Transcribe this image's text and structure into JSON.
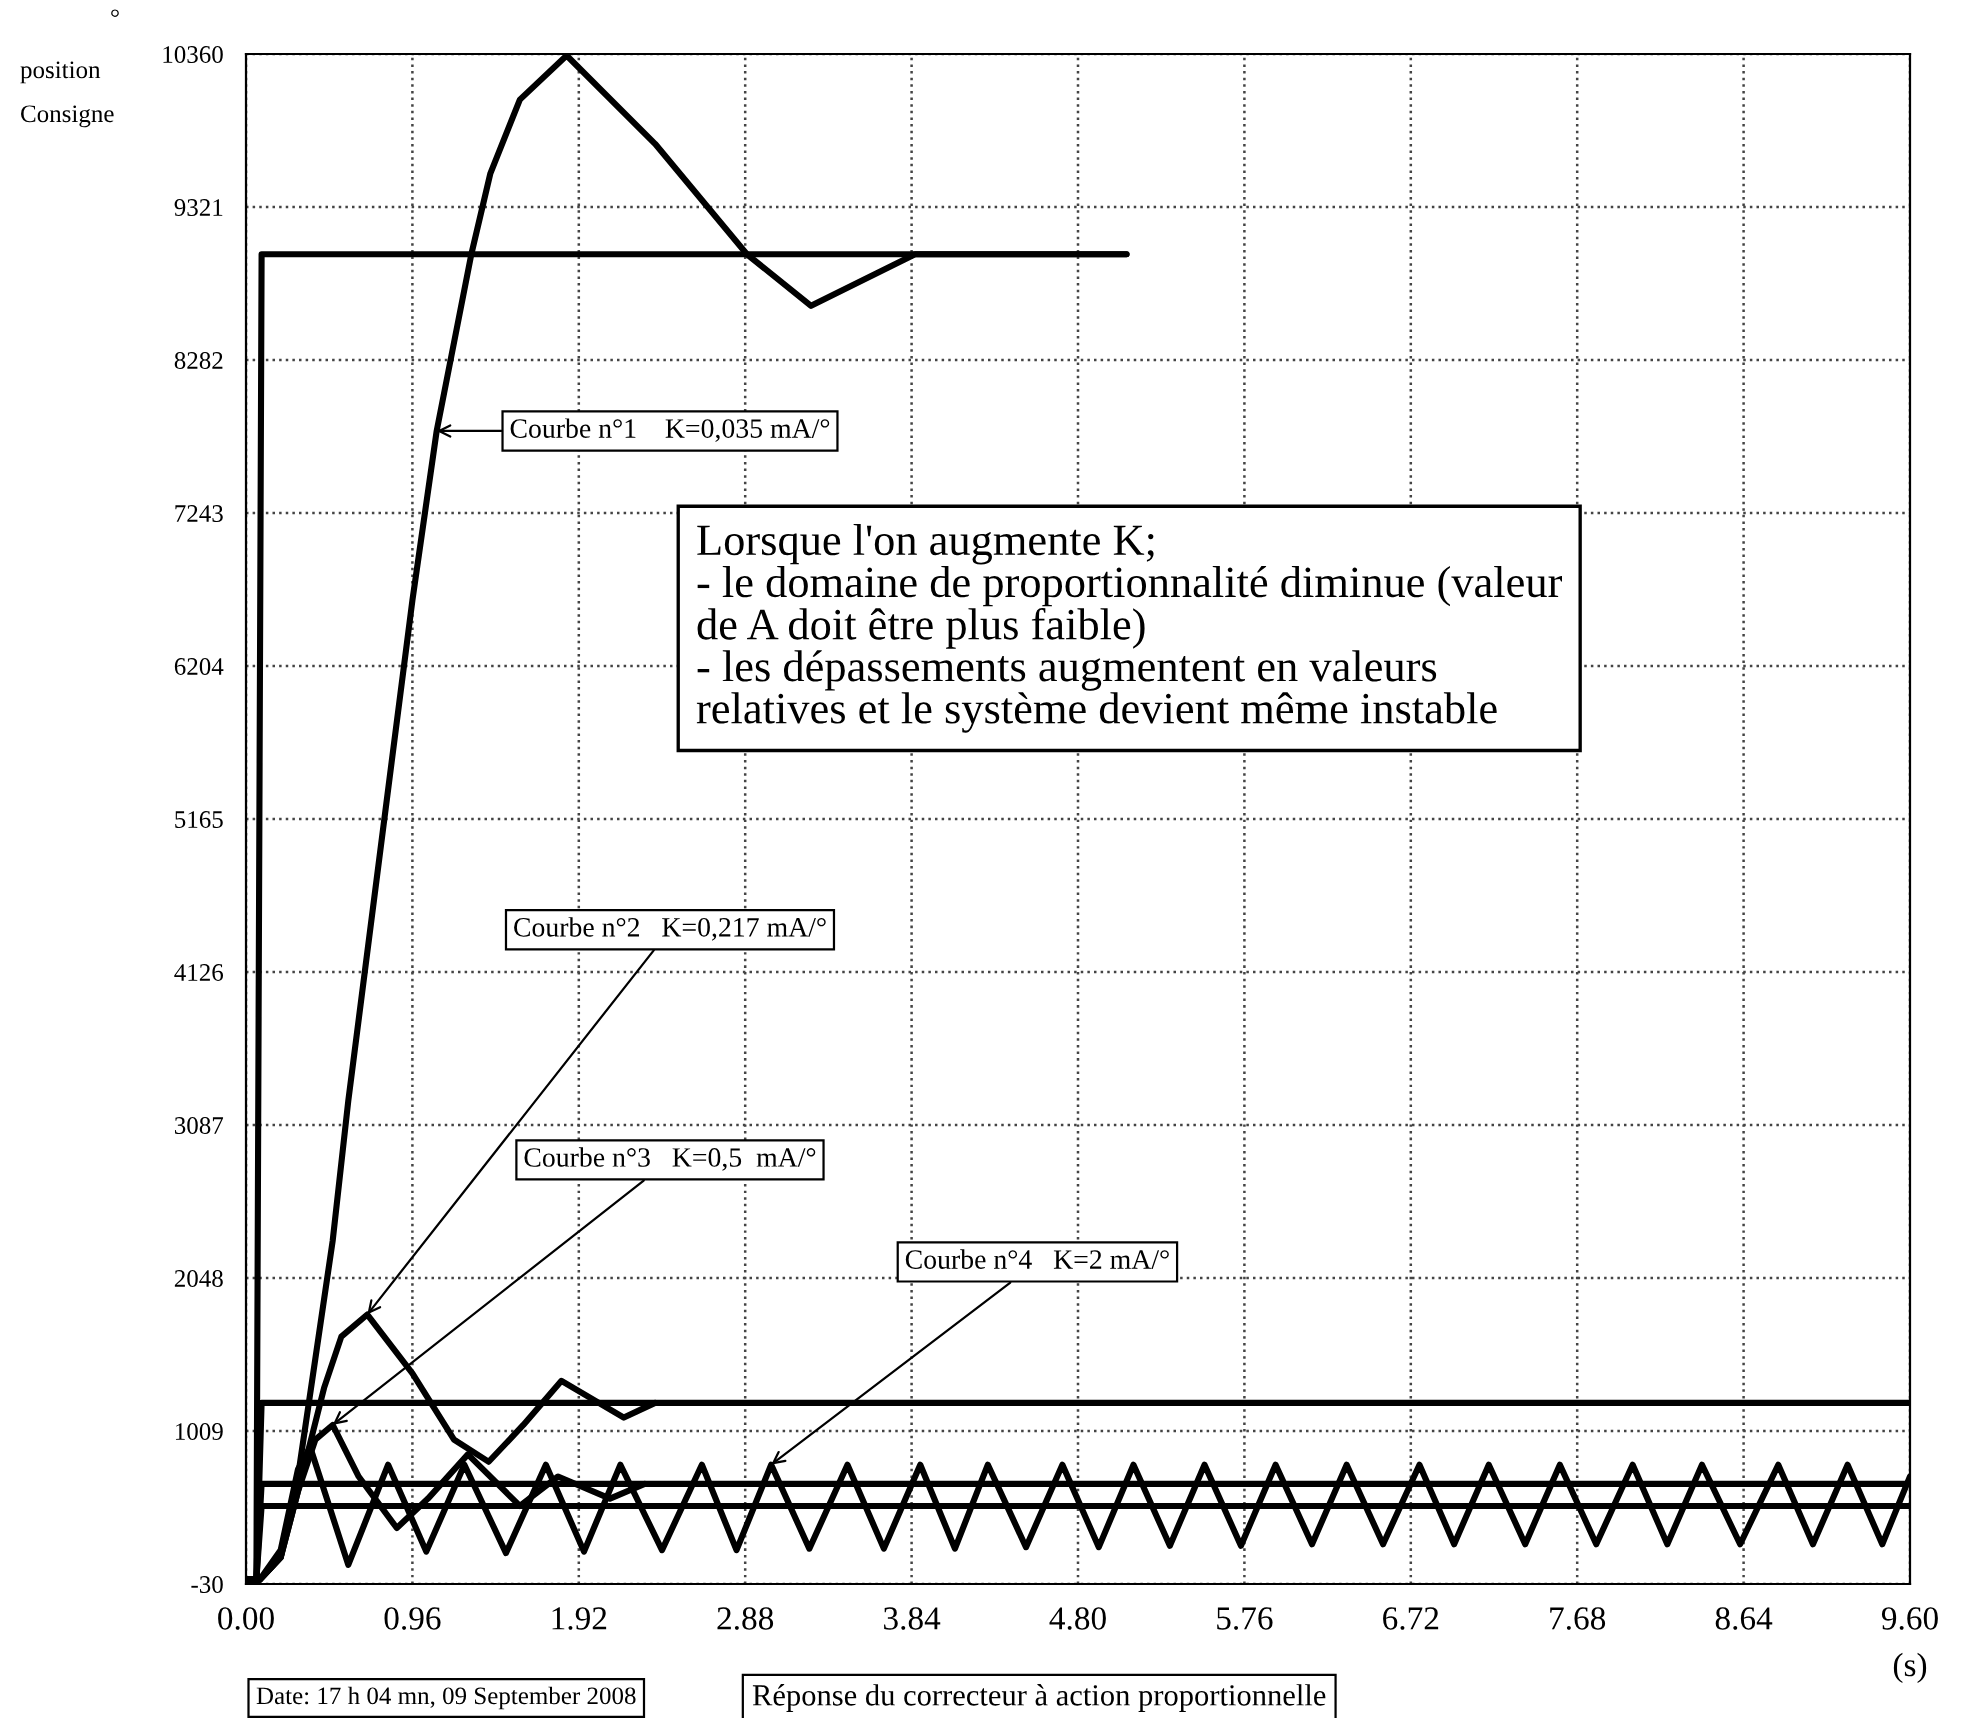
{
  "chart_data": {
    "type": "line",
    "xlim": [
      0,
      9.6
    ],
    "ylim": [
      -30,
      10360
    ],
    "xticks": [
      {
        "value": 0,
        "label": "0.00"
      },
      0.96,
      1.92,
      2.88,
      3.84,
      {
        "value": 4.8,
        "label": "4.80"
      },
      5.76,
      6.72,
      7.68,
      8.64,
      {
        "value": 9.6,
        "label": "9.60"
      }
    ],
    "yticks": [
      -30,
      1009,
      2048,
      3087,
      4126,
      5165,
      6204,
      7243,
      8282,
      9321,
      10360
    ],
    "xlabel": "(s)",
    "grid": true,
    "line_style": "solid",
    "marker": "none",
    "legend": false,
    "series": [
      {
        "color": "#000000",
        "x": [
          0,
          0.08,
          0.2,
          0.3,
          0.4,
          0.5,
          0.59,
          0.84,
          0.96,
          1.1,
          1.3,
          1.41,
          1.58,
          1.85,
          2.36,
          2.89,
          3.26,
          3.86,
          5.08
        ],
        "values": [
          0,
          0,
          150,
          700,
          1500,
          2300,
          3250,
          5550,
          6650,
          7800,
          9000,
          9550,
          10050,
          10350,
          9750,
          9000,
          8650,
          9000,
          9000
        ]
      },
      {
        "color": "#000000",
        "x": [
          0,
          0.08,
          0.2,
          0.3,
          0.45,
          0.55,
          0.7,
          0.96,
          1.2,
          1.4,
          1.6,
          1.82,
          2.18,
          2.36
        ],
        "values": [
          0,
          0,
          150,
          600,
          1300,
          1650,
          1800,
          1400,
          950,
          800,
          1050,
          1350,
          1100,
          1200
        ]
      },
      {
        "color": "#000000",
        "x": [
          0,
          0.08,
          0.2,
          0.3,
          0.4,
          0.5,
          0.65,
          0.87,
          1.05,
          1.28,
          1.58,
          1.8,
          2.1,
          2.3
        ],
        "values": [
          0,
          0,
          150,
          600,
          950,
          1050,
          700,
          350,
          550,
          850,
          500,
          700,
          550,
          650
        ]
      },
      {
        "color": "#000000",
        "x": [
          0,
          0.08,
          0.2,
          0.3,
          0.37,
          0.59,
          0.82,
          1.04,
          1.26,
          1.5,
          1.73,
          1.95,
          2.16,
          2.4,
          2.63,
          2.83,
          3.03,
          3.25,
          3.47,
          3.68,
          3.89,
          4.09,
          4.28,
          4.5,
          4.71,
          4.92,
          5.12,
          5.33,
          5.53,
          5.74,
          5.94,
          6.15,
          6.35,
          6.56,
          6.77,
          6.97,
          7.17,
          7.38,
          7.58,
          7.79,
          8.0,
          8.2,
          8.4,
          8.62,
          8.84,
          9.04,
          9.24,
          9.44,
          9.6
        ],
        "values": [
          0,
          0,
          200,
          750,
          900,
          100,
          780,
          190,
          780,
          180,
          780,
          190,
          780,
          200,
          780,
          200,
          780,
          210,
          780,
          210,
          780,
          210,
          780,
          220,
          780,
          220,
          780,
          230,
          780,
          230,
          780,
          240,
          780,
          240,
          780,
          240,
          780,
          240,
          780,
          240,
          780,
          240,
          780,
          240,
          780,
          240,
          780,
          240,
          700
        ]
      },
      {
        "color": "#000000",
        "x": [
          0,
          0.06,
          0.09,
          5.08
        ],
        "values": [
          0,
          0,
          9000,
          9000
        ]
      },
      {
        "color": "#000000",
        "x": [
          0,
          0.06,
          0.09,
          9.6
        ],
        "values": [
          0,
          0,
          1200,
          1200
        ]
      },
      {
        "color": "#000000",
        "x": [
          0,
          0.06,
          0.09,
          9.6
        ],
        "values": [
          0,
          0,
          650,
          650
        ]
      },
      {
        "color": "#000000",
        "x": [
          0,
          0.06,
          0.09,
          9.6
        ],
        "values": [
          0,
          0,
          500,
          500
        ]
      }
    ],
    "annotations": [
      "°",
      "position",
      "Consigne",
      {
        "text": "Courbe n°1    K=0,035 mA/°",
        "x": 1.1,
        "y": 7800
      },
      {
        "text": "Courbe n°2   K=0,217 mA/°",
        "x": 0.7,
        "y": 1800
      },
      {
        "text": "Courbe n°3   K=0,5  mA/°",
        "x": 0.5,
        "y": 1050
      },
      {
        "text": "Courbe n°4   K=2 mA/°",
        "x": 3.03,
        "y": 780
      },
      "Lorsque l'on augmente K;\n- le domaine de proportionnalité diminue (valeur\nde A doit être plus faible)\n- les dépassements augmentent en valeurs\nrelatives et le système devient même instable",
      "Date: 17 h 04 mn, 09 September 2008",
      "Réponse du correcteur à action proportionnelle"
    ]
  }
}
